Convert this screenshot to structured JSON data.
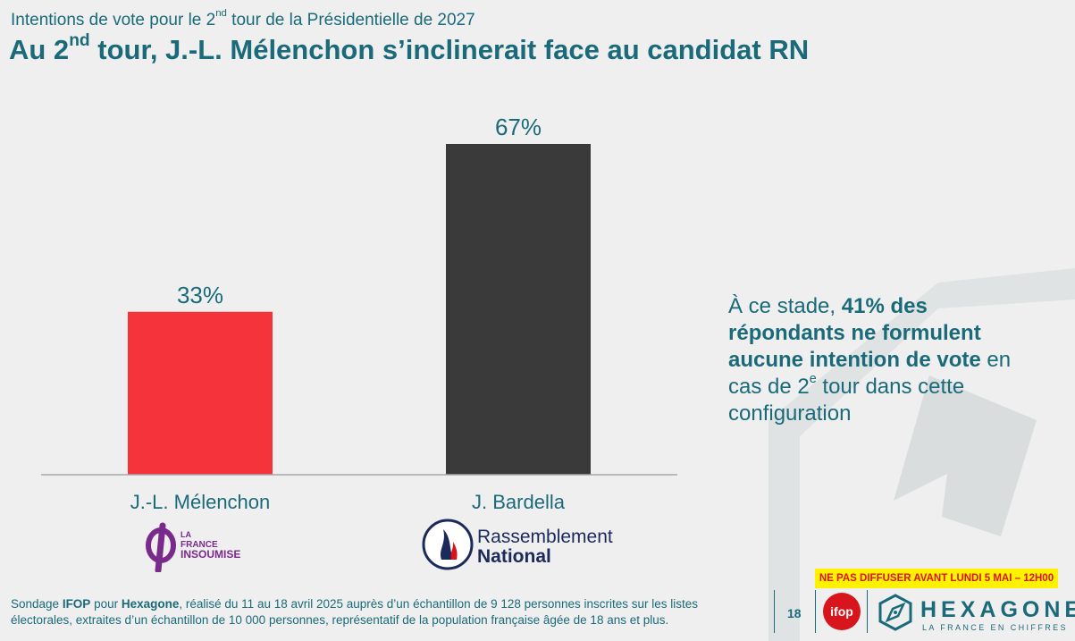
{
  "header": {
    "subtitle_pre": "Intentions de vote pour le 2",
    "subtitle_sup": "nd",
    "subtitle_post": " tour de la Présidentielle de 2027",
    "title_pre": "Au 2",
    "title_sup": "nd",
    "title_post": " tour, J.-L. Mélenchon s’inclinerait face au candidat RN"
  },
  "chart_data": {
    "type": "bar",
    "categories": [
      "J.-L. Mélenchon",
      "J. Bardella"
    ],
    "values": [
      33,
      67
    ],
    "data_labels": [
      "33%",
      "67%"
    ],
    "unit": "%",
    "ylim": [
      0,
      67
    ],
    "grid": false,
    "legend": "none",
    "colors": [
      "#f5333a",
      "#3a3a3a"
    ]
  },
  "parties": {
    "lfi": {
      "line1": "LA",
      "line2": "FRANCE",
      "line3": "INSOUMISE",
      "color": "#7a2a8a",
      "icon": "lfi-phi-logo"
    },
    "rn": {
      "line1": "Rassemblement",
      "line2": "National",
      "color": "#1b2a5a",
      "flame_color": "#d8141c",
      "icon": "rn-flame-logo"
    }
  },
  "insight": {
    "pre": "À ce stade, ",
    "bold": "41% des répondants ne formulent aucune intention de vote",
    "post1": " en cas de 2",
    "sup": "e",
    "post2": " tour dans cette configuration"
  },
  "embargo": "NE PAS DIFFUSER AVANT LUNDI 5 MAI – 12H00",
  "footnote": {
    "pre": "Sondage ",
    "ifop": "IFOP",
    "mid": " pour ",
    "hexagone": "Hexagone",
    "post": ", réalisé du 11 au 18 avril 2025 auprès d’un échantillon de 9 128 personnes inscrites sur les listes électorales, extraites d’un échantillon de 10 000 personnes, représentatif de la population française âgée de 18 ans et plus."
  },
  "page_number": "18",
  "brand": {
    "ifop_label": "ifop",
    "hexagone_name": "HEXAGONE",
    "hexagone_tagline": "LA FRANCE EN CHIFFRES",
    "accent": "#1a6a7a",
    "ifop_red": "#d8141c"
  }
}
